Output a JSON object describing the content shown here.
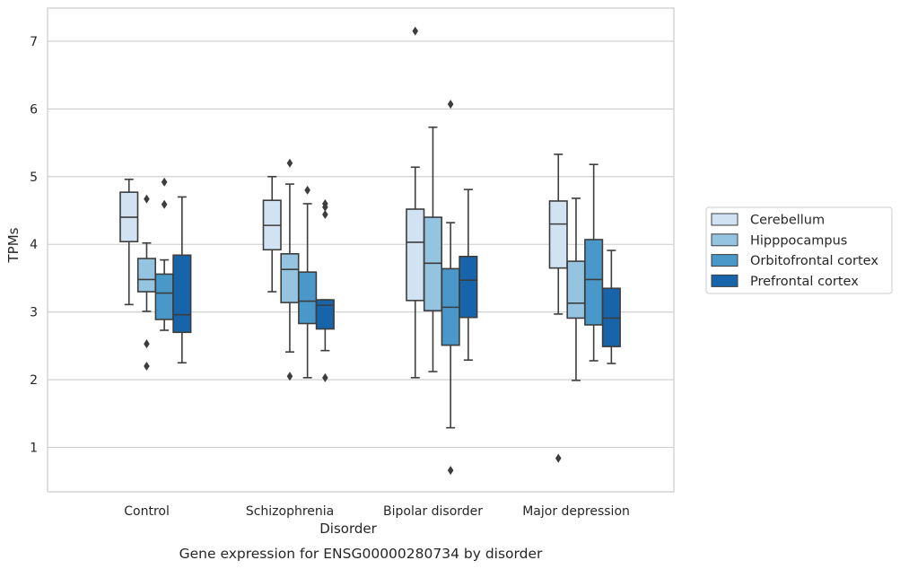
{
  "chart_data": {
    "type": "box",
    "caption": "Gene expression for ENSG00000280734 by disorder",
    "xlabel": "Disorder",
    "ylabel": "TPMs",
    "ylim": [
      0.35,
      7.5
    ],
    "yticks": [
      1,
      2,
      3,
      4,
      5,
      6,
      7
    ],
    "grid": "horizontal",
    "legend_placement": "right",
    "categories": [
      "Control",
      "Schizophrenia",
      "Bipolar disorder",
      "Major depression"
    ],
    "series": [
      {
        "name": "Cerebellum",
        "color": "#d1e2f2",
        "boxes": [
          {
            "q1": 4.04,
            "median": 4.4,
            "q3": 4.77,
            "whislo": 3.11,
            "whishi": 4.96,
            "fliers": []
          },
          {
            "q1": 3.92,
            "median": 4.28,
            "q3": 4.65,
            "whislo": 3.3,
            "whishi": 5.0,
            "fliers": []
          },
          {
            "q1": 3.17,
            "median": 4.03,
            "q3": 4.52,
            "whislo": 2.03,
            "whishi": 5.14,
            "fliers": [
              7.15
            ]
          },
          {
            "q1": 3.65,
            "median": 4.3,
            "q3": 4.64,
            "whislo": 2.97,
            "whishi": 5.33,
            "fliers": [
              0.84
            ]
          }
        ]
      },
      {
        "name": "Hipppocampus",
        "color": "#94c4df",
        "boxes": [
          {
            "q1": 3.3,
            "median": 3.48,
            "q3": 3.79,
            "whislo": 3.01,
            "whishi": 4.02,
            "fliers": [
              4.67,
              2.53,
              2.2
            ]
          },
          {
            "q1": 3.14,
            "median": 3.63,
            "q3": 3.86,
            "whislo": 2.41,
            "whishi": 4.89,
            "fliers": [
              5.2,
              2.05
            ]
          },
          {
            "q1": 3.02,
            "median": 3.72,
            "q3": 4.4,
            "whislo": 2.12,
            "whishi": 5.73,
            "fliers": []
          },
          {
            "q1": 2.91,
            "median": 3.13,
            "q3": 3.75,
            "whislo": 1.99,
            "whishi": 4.68,
            "fliers": []
          }
        ]
      },
      {
        "name": "Orbitofrontal cortex",
        "color": "#4a98c9",
        "boxes": [
          {
            "q1": 2.89,
            "median": 3.28,
            "q3": 3.56,
            "whislo": 2.73,
            "whishi": 3.77,
            "fliers": [
              4.92,
              4.59
            ]
          },
          {
            "q1": 2.83,
            "median": 3.16,
            "q3": 3.59,
            "whislo": 2.03,
            "whishi": 4.6,
            "fliers": [
              4.8
            ]
          },
          {
            "q1": 2.51,
            "median": 3.07,
            "q3": 3.64,
            "whislo": 1.29,
            "whishi": 4.32,
            "fliers": [
              6.07,
              0.66
            ]
          },
          {
            "q1": 2.81,
            "median": 3.48,
            "q3": 4.07,
            "whislo": 2.28,
            "whishi": 5.18,
            "fliers": []
          }
        ]
      },
      {
        "name": "Prefrontal cortex",
        "color": "#1764ab",
        "boxes": [
          {
            "q1": 2.7,
            "median": 2.96,
            "q3": 3.84,
            "whislo": 2.25,
            "whishi": 4.7,
            "fliers": []
          },
          {
            "q1": 2.75,
            "median": 3.1,
            "q3": 3.18,
            "whislo": 2.43,
            "whishi": 3.18,
            "fliers": [
              4.6,
              4.55,
              4.44,
              2.03
            ]
          },
          {
            "q1": 2.92,
            "median": 3.47,
            "q3": 3.82,
            "whislo": 2.29,
            "whishi": 4.81,
            "fliers": []
          },
          {
            "q1": 2.49,
            "median": 2.91,
            "q3": 3.35,
            "whislo": 2.24,
            "whishi": 3.91,
            "fliers": []
          }
        ]
      }
    ]
  }
}
